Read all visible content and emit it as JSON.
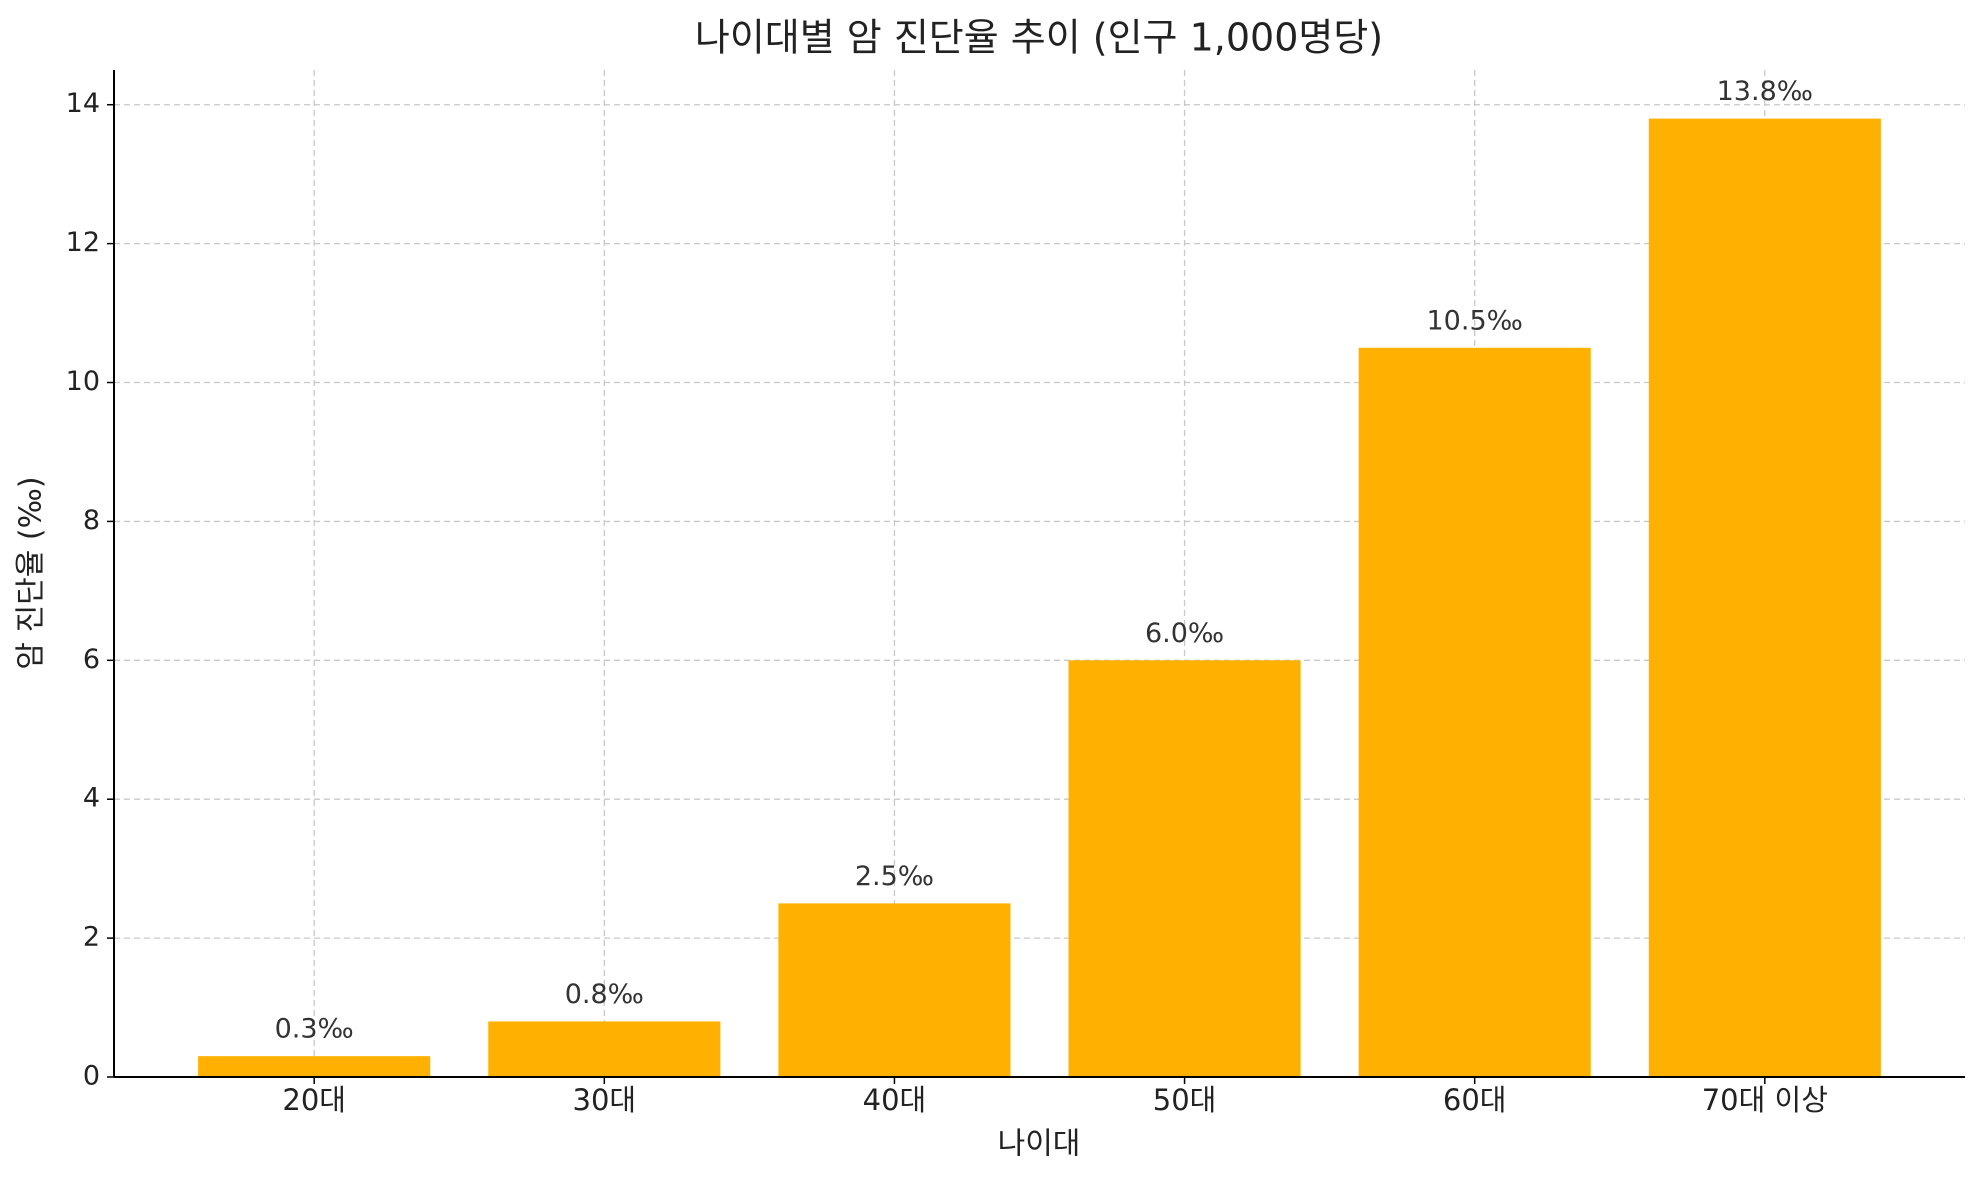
{
  "chart_data": {
    "type": "bar",
    "title": "나이대별 암 진단율 추이 (인구 1,000명당)",
    "x_label": "나이대",
    "y_label": "암 진단율 (‰)",
    "categories": [
      "20대",
      "30대",
      "40대",
      "50대",
      "60대",
      "70대 이상"
    ],
    "values": [
      0.3,
      0.8,
      2.5,
      6.0,
      10.5,
      13.8
    ],
    "value_labels": [
      "0.3‰",
      "0.8‰",
      "2.5‰",
      "6.0‰",
      "10.5‰",
      "13.8‰"
    ],
    "color": "#ffb000",
    "ylim": [
      0,
      14.5
    ],
    "yticks": [
      0,
      2,
      4,
      6,
      8,
      10,
      12,
      14
    ],
    "grid": true
  }
}
